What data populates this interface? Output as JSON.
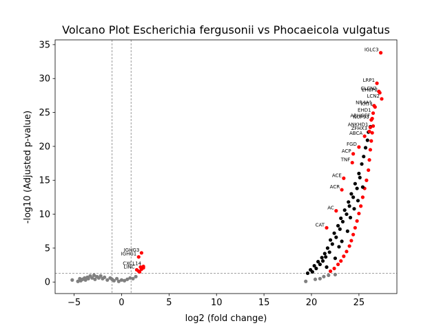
{
  "chart_data": {
    "type": "scatter",
    "title": "Volcano Plot Escherichia fergusonii vs Phocaeicola vulgatus",
    "xlabel": "log2 (fold change)",
    "ylabel": "-log10 (Adjusted p-value)",
    "xlim": [
      -7,
      29
    ],
    "ylim": [
      -1.7,
      35.7
    ],
    "x_ticks": [
      -5,
      0,
      5,
      10,
      15,
      20,
      25
    ],
    "y_ticks": [
      0,
      5,
      10,
      15,
      20,
      25,
      30,
      35
    ],
    "grid": false,
    "threshold_lines": {
      "log2fc": [
        -1,
        1
      ],
      "neg_log10_padj": 1.3
    },
    "colors": {
      "not_significant": "#808080",
      "significant": "#ff0000",
      "label_marker": "#000000",
      "threshold_line": "#808080"
    },
    "series": [
      {
        "name": "",
        "color": "#808080",
        "x": [
          -5.2,
          -4.6,
          -4.4,
          -4.3,
          -4.1,
          -3.9,
          -3.8,
          -3.6,
          -3.5,
          -3.3,
          -3.1,
          -2.9,
          -2.8,
          -2.6,
          -2.4,
          -2.2,
          -2.0,
          -1.8,
          -1.5,
          -1.2,
          -1.0,
          -0.8,
          -0.5,
          -0.3,
          0.0,
          0.3,
          0.6,
          0.9,
          1.2,
          1.5,
          19.4,
          20.4,
          20.9,
          21.3,
          21.8,
          22.5
        ],
        "y": [
          0.3,
          0.1,
          0.5,
          0.2,
          0.4,
          0.6,
          0.3,
          0.7,
          0.5,
          0.9,
          0.6,
          1.0,
          0.4,
          0.8,
          0.6,
          0.9,
          0.5,
          0.7,
          0.3,
          0.6,
          0.4,
          0.2,
          0.5,
          0.1,
          0.3,
          0.2,
          0.4,
          0.6,
          0.5,
          0.8,
          0.1,
          0.4,
          0.5,
          0.8,
          1.0,
          1.1
        ]
      },
      {
        "name": "",
        "color": "#ff0000",
        "x": [
          22.0,
          22.4,
          22.8,
          23.1,
          23.4,
          23.7,
          24.0,
          24.2,
          24.4,
          24.6,
          24.8,
          25.0,
          25.2,
          25.4,
          25.6,
          25.8,
          26.0,
          26.1,
          26.2,
          26.3,
          26.4,
          26.5,
          1.8,
          2.0,
          2.3,
          1.9,
          2.1
        ],
        "y": [
          1.6,
          2.0,
          2.6,
          3.1,
          3.8,
          4.5,
          5.3,
          6.1,
          7.0,
          8.0,
          9.0,
          10.1,
          11.2,
          12.5,
          13.8,
          15.0,
          16.5,
          18.0,
          19.5,
          20.8,
          22.0,
          23.0,
          1.6,
          2.2,
          2.1,
          1.5,
          1.9
        ]
      },
      {
        "name": "",
        "color": "#000000",
        "x": [
          19.6,
          19.9,
          20.1,
          20.3,
          20.5,
          20.7,
          20.9,
          21.1,
          21.2,
          21.4,
          21.5,
          21.7,
          21.9,
          22.0,
          22.2,
          22.4,
          22.6,
          22.8,
          23.0,
          23.1,
          23.3,
          23.5,
          23.7,
          23.9,
          24.0,
          24.2,
          24.4,
          24.6,
          24.8,
          25.0,
          25.1,
          25.3,
          25.5,
          25.7,
          25.9,
          26.0,
          26.2,
          22.5,
          23.2,
          24.1,
          23.8,
          24.9,
          25.4,
          21.6,
          22.9,
          24.5
        ],
        "y": [
          1.3,
          1.8,
          1.5,
          2.4,
          2.0,
          3.0,
          2.6,
          3.6,
          3.1,
          4.2,
          3.7,
          5.0,
          4.4,
          6.2,
          5.6,
          7.2,
          6.6,
          8.3,
          7.8,
          9.4,
          8.9,
          10.6,
          10.0,
          11.8,
          11.2,
          13.0,
          12.5,
          14.5,
          13.8,
          16.0,
          15.4,
          17.4,
          18.5,
          19.8,
          20.9,
          22.1,
          22.9,
          3.5,
          6.0,
          9.5,
          7.5,
          12.0,
          14.0,
          2.2,
          5.2,
          10.8
        ]
      }
    ],
    "labeled_points": [
      {
        "label": "IGLC3",
        "x": 27.3,
        "y": 33.8
      },
      {
        "label": "LRP1",
        "x": 26.9,
        "y": 29.3
      },
      {
        "label": "CLCN2",
        "x": 27.1,
        "y": 28.1
      },
      {
        "label": "EHBP2",
        "x": 27.2,
        "y": 27.9
      },
      {
        "label": "LCN2",
        "x": 27.4,
        "y": 27.0
      },
      {
        "label": "NR4A1",
        "x": 26.6,
        "y": 26.0
      },
      {
        "label": "KRT1",
        "x": 26.7,
        "y": 25.8
      },
      {
        "label": "EHD1",
        "x": 26.5,
        "y": 24.9
      },
      {
        "label": "ARHGEF",
        "x": 26.4,
        "y": 24.1
      },
      {
        "label": "NUP93",
        "x": 26.3,
        "y": 23.9
      },
      {
        "label": "ANKHD1",
        "x": 26.2,
        "y": 22.8
      },
      {
        "label": "ZFHX3",
        "x": 26.1,
        "y": 22.2
      },
      {
        "label": "ABCA",
        "x": 25.6,
        "y": 21.5
      },
      {
        "label": "FGD",
        "x": 25.0,
        "y": 19.9
      },
      {
        "label": "ACP",
        "x": 24.4,
        "y": 18.9
      },
      {
        "label": "TNF",
        "x": 24.3,
        "y": 17.6
      },
      {
        "label": "ACE",
        "x": 23.4,
        "y": 15.3
      },
      {
        "label": "ACR",
        "x": 23.2,
        "y": 13.6
      },
      {
        "label": "AC",
        "x": 22.6,
        "y": 10.5
      },
      {
        "label": "CAT",
        "x": 21.6,
        "y": 8.0
      },
      {
        "label": "IGHG3",
        "x": 2.1,
        "y": 4.3
      },
      {
        "label": "IGHG1",
        "x": 1.8,
        "y": 3.7
      },
      {
        "label": "CXCL14",
        "x": 2.3,
        "y": 2.3
      },
      {
        "label": "LINC",
        "x": 1.6,
        "y": 1.8
      }
    ]
  }
}
